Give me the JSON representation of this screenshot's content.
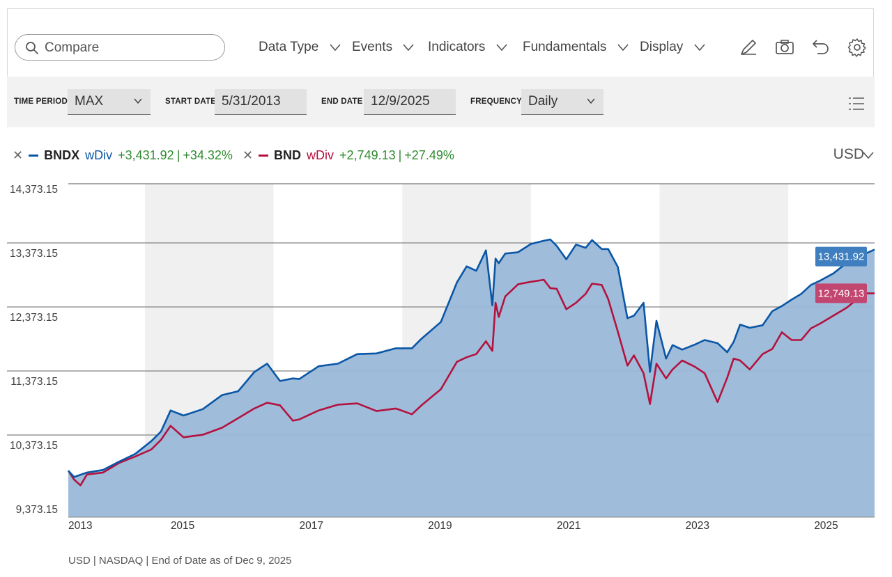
{
  "toolbar": {
    "compare_placeholder": "Compare",
    "menus": [
      "Data Type",
      "Events",
      "Indicators",
      "Fundamentals",
      "Display"
    ],
    "tools": [
      "pencil-icon",
      "camera-icon",
      "undo-icon",
      "gear-icon"
    ]
  },
  "filters": {
    "time_period_label": "TIME PERIOD",
    "time_period_value": "MAX",
    "start_date_label": "START DATE",
    "start_date_value": "5/31/2013",
    "end_date_label": "END DATE",
    "end_date_value": "12/9/2025",
    "frequency_label": "FREQUENCY",
    "frequency_value": "Daily"
  },
  "legend": {
    "items": [
      {
        "ticker": "BNDX",
        "type": "wDiv",
        "change": "+3,431.92",
        "pct": "+34.32%",
        "color": "#0a56a6"
      },
      {
        "ticker": "BND",
        "type": "wDiv",
        "change": "+2,749.13",
        "pct": "+27.49%",
        "color": "#b3123f"
      }
    ]
  },
  "currency": "USD",
  "footnote": "USD | NASDAQ | End of Date as of Dec 9, 2025",
  "colors": {
    "bndx": "#0a56a6",
    "bnd": "#b3123f",
    "area": "#9ab8d8",
    "band": "#f0f0f0",
    "bndx_tag": "#3f7fc0",
    "bnd_tag": "#c24770"
  },
  "chart_data": {
    "type": "area",
    "ylim": [
      9373.15,
      14373.15
    ],
    "yticks": [
      9373.15,
      10373.15,
      11373.15,
      12373.15,
      13373.15,
      14373.15
    ],
    "ytick_labels": [
      "9,373.15",
      "10,373.15",
      "11,373.15",
      "12,373.15",
      "13,373.15",
      "14,373.15"
    ],
    "xlim": [
      2013.41,
      2025.94
    ],
    "xticks": [
      2013,
      2015,
      2017,
      2019,
      2021,
      2023,
      2025
    ],
    "xtick_labels": [
      "2013",
      "2015",
      "2017",
      "2019",
      "2021",
      "2023",
      "2025"
    ],
    "shaded_periods": [
      [
        2014.6,
        2016.6
      ],
      [
        2018.6,
        2020.6
      ],
      [
        2022.6,
        2024.6
      ]
    ],
    "series": [
      {
        "name": "BNDX",
        "last_value_label": "13,431.92",
        "x": [
          2013.41,
          2013.5,
          2013.7,
          2013.95,
          2014.2,
          2014.45,
          2014.7,
          2014.85,
          2015.0,
          2015.2,
          2015.5,
          2015.8,
          2016.05,
          2016.3,
          2016.5,
          2016.7,
          2016.9,
          2017.0,
          2017.3,
          2017.6,
          2017.9,
          2018.2,
          2018.5,
          2018.75,
          2018.9,
          2019.2,
          2019.45,
          2019.6,
          2019.75,
          2019.9,
          2020.0,
          2020.05,
          2020.1,
          2020.2,
          2020.4,
          2020.6,
          2020.8,
          2020.9,
          2021.0,
          2021.15,
          2021.3,
          2021.45,
          2021.55,
          2021.7,
          2021.8,
          2021.95,
          2022.1,
          2022.2,
          2022.35,
          2022.45,
          2022.55,
          2022.7,
          2022.8,
          2022.95,
          2023.15,
          2023.3,
          2023.5,
          2023.65,
          2023.75,
          2023.85,
          2024.0,
          2024.2,
          2024.35,
          2024.5,
          2024.65,
          2024.8,
          2024.95,
          2025.1,
          2025.3,
          2025.5,
          2025.7,
          2025.8,
          2025.94
        ],
        "values": [
          9980,
          9880,
          9950,
          9990,
          10120,
          10240,
          10440,
          10590,
          10920,
          10840,
          10940,
          11160,
          11220,
          11520,
          11650,
          11380,
          11420,
          11410,
          11610,
          11650,
          11800,
          11810,
          11890,
          11890,
          12040,
          12300,
          12920,
          13170,
          13100,
          13420,
          12560,
          13290,
          13220,
          13370,
          13390,
          13520,
          13570,
          13590,
          13490,
          13280,
          13510,
          13460,
          13580,
          13440,
          13440,
          13160,
          12360,
          12400,
          12600,
          11520,
          12320,
          11730,
          11940,
          11870,
          11950,
          12020,
          11970,
          11830,
          11990,
          12260,
          12210,
          12250,
          12470,
          12550,
          12650,
          12740,
          12880,
          12950,
          13060,
          13220,
          13210,
          13370,
          13431.92
        ]
      },
      {
        "name": "BND",
        "last_value_label": "12,749.13",
        "x": [
          2013.41,
          2013.5,
          2013.6,
          2013.7,
          2013.95,
          2014.2,
          2014.45,
          2014.7,
          2014.85,
          2015.0,
          2015.2,
          2015.5,
          2015.8,
          2016.05,
          2016.3,
          2016.5,
          2016.7,
          2016.9,
          2017.0,
          2017.3,
          2017.6,
          2017.9,
          2018.2,
          2018.5,
          2018.75,
          2018.9,
          2019.2,
          2019.45,
          2019.6,
          2019.75,
          2019.9,
          2020.0,
          2020.05,
          2020.1,
          2020.2,
          2020.4,
          2020.6,
          2020.8,
          2020.9,
          2021.0,
          2021.15,
          2021.3,
          2021.45,
          2021.55,
          2021.7,
          2021.8,
          2021.95,
          2022.1,
          2022.2,
          2022.35,
          2022.45,
          2022.55,
          2022.7,
          2022.8,
          2022.95,
          2023.15,
          2023.3,
          2023.5,
          2023.65,
          2023.75,
          2023.85,
          2024.0,
          2024.2,
          2024.35,
          2024.5,
          2024.65,
          2024.8,
          2024.95,
          2025.1,
          2025.3,
          2025.5,
          2025.7,
          2025.8,
          2025.94
        ],
        "values": [
          9980,
          9840,
          9750,
          9920,
          9950,
          10100,
          10200,
          10310,
          10460,
          10680,
          10500,
          10540,
          10650,
          10800,
          10950,
          11040,
          11000,
          10760,
          10780,
          10920,
          11010,
          11030,
          10910,
          10950,
          10860,
          11000,
          11250,
          11680,
          11750,
          11800,
          12000,
          11850,
          12600,
          12380,
          12700,
          12890,
          12930,
          12960,
          12830,
          12820,
          12500,
          12600,
          12740,
          12900,
          12880,
          12660,
          12150,
          11620,
          11780,
          11500,
          11020,
          11650,
          11420,
          11560,
          11700,
          11600,
          11500,
          11050,
          11430,
          11730,
          11700,
          11560,
          11800,
          11880,
          12140,
          12020,
          12020,
          12200,
          12280,
          12400,
          12520,
          12680,
          12749.13,
          12749.13
        ]
      }
    ]
  }
}
